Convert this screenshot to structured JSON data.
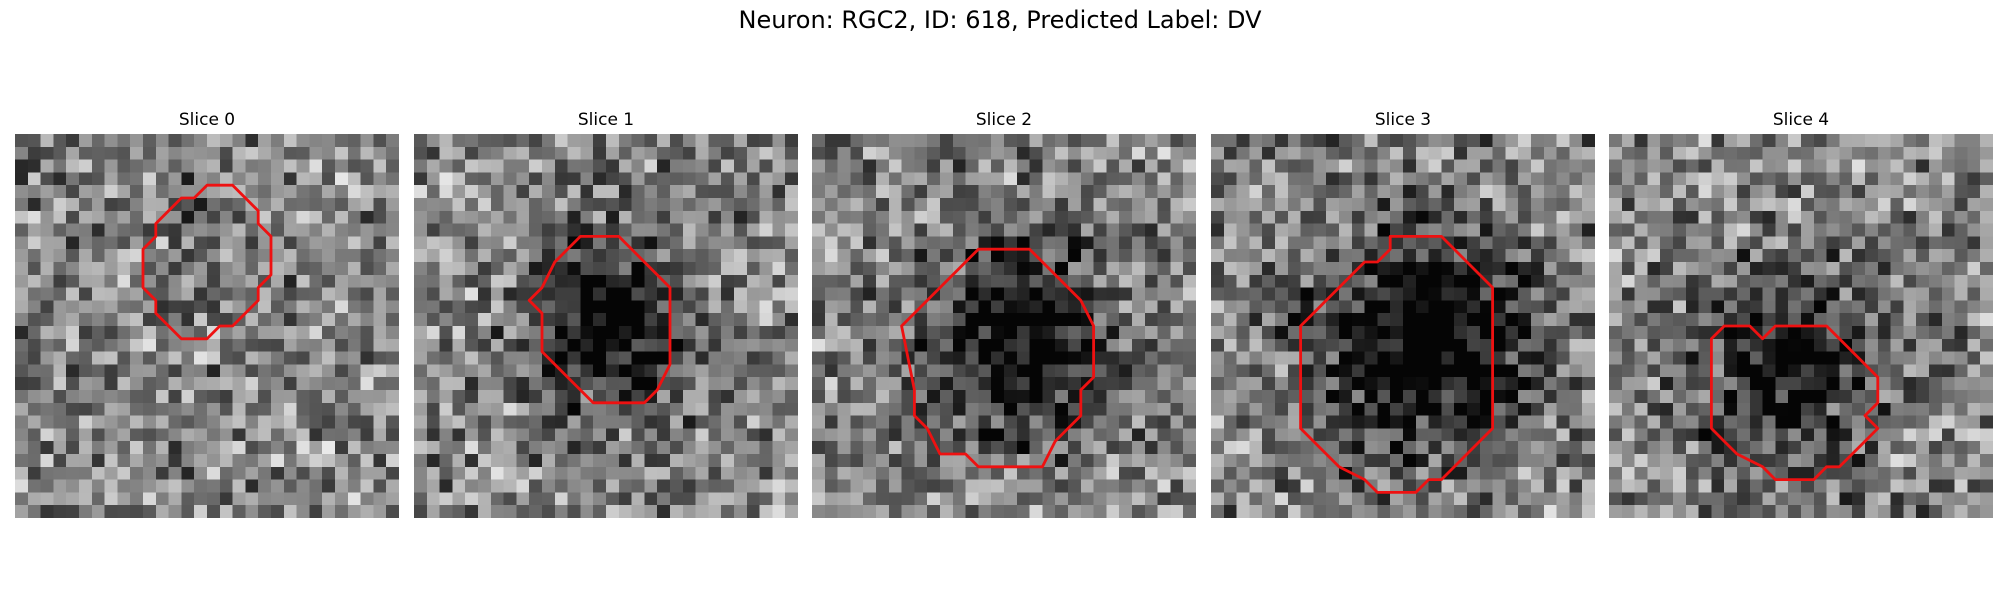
{
  "figure": {
    "title": "Neuron: RGC2, ID: 618, Predicted Label: DV"
  },
  "colors": {
    "contour": "#ee1111"
  },
  "slices": [
    {
      "title": "Slice 0",
      "seed": 11,
      "blob": {
        "cx": 16,
        "cy": 9,
        "r": 5,
        "darkness": 0.12
      },
      "contour": [
        [
          15,
          4
        ],
        [
          17,
          4
        ],
        [
          19,
          6
        ],
        [
          19,
          7
        ],
        [
          20,
          8
        ],
        [
          20,
          11
        ],
        [
          19,
          12
        ],
        [
          19,
          13
        ],
        [
          17,
          15
        ],
        [
          16,
          15
        ],
        [
          15,
          16
        ],
        [
          13,
          16
        ],
        [
          11,
          14
        ],
        [
          11,
          13
        ],
        [
          10,
          12
        ],
        [
          10,
          9
        ],
        [
          11,
          8
        ],
        [
          11,
          7
        ],
        [
          13,
          5
        ],
        [
          14,
          5
        ]
      ]
    },
    {
      "title": "Slice 1",
      "seed": 23,
      "blob": {
        "cx": 15,
        "cy": 15,
        "r": 5.5,
        "darkness": 0.62
      },
      "contour": [
        [
          13,
          8
        ],
        [
          16,
          8
        ],
        [
          20,
          12
        ],
        [
          20,
          18
        ],
        [
          19,
          20
        ],
        [
          18,
          21
        ],
        [
          14,
          21
        ],
        [
          10,
          17
        ],
        [
          10,
          14
        ],
        [
          9,
          13
        ],
        [
          10,
          12
        ],
        [
          11,
          10
        ],
        [
          13,
          8
        ]
      ]
    },
    {
      "title": "Slice 2",
      "seed": 37,
      "blob": {
        "cx": 16,
        "cy": 16,
        "r": 7,
        "darkness": 0.55
      },
      "contour": [
        [
          13,
          9
        ],
        [
          17,
          9
        ],
        [
          19,
          11
        ],
        [
          21,
          13
        ],
        [
          22,
          15
        ],
        [
          22,
          19
        ],
        [
          21,
          20
        ],
        [
          21,
          22
        ],
        [
          19,
          24
        ],
        [
          18,
          26
        ],
        [
          13,
          26
        ],
        [
          12,
          25
        ],
        [
          10,
          25
        ],
        [
          9,
          23
        ],
        [
          8,
          22
        ],
        [
          8,
          20
        ],
        [
          7,
          15
        ],
        [
          8,
          14
        ],
        [
          10,
          12
        ],
        [
          12,
          10
        ],
        [
          13,
          9
        ]
      ]
    },
    {
      "title": "Slice 3",
      "seed": 49,
      "blob": {
        "cx": 17,
        "cy": 16,
        "r": 8,
        "darkness": 0.68
      },
      "contour": [
        [
          14,
          8
        ],
        [
          18,
          8
        ],
        [
          20,
          10
        ],
        [
          22,
          12
        ],
        [
          22,
          23
        ],
        [
          20,
          25
        ],
        [
          18,
          27
        ],
        [
          17,
          27
        ],
        [
          16,
          28
        ],
        [
          13,
          28
        ],
        [
          12,
          27
        ],
        [
          10,
          26
        ],
        [
          9,
          25
        ],
        [
          8,
          24
        ],
        [
          7,
          23
        ],
        [
          7,
          15
        ],
        [
          8,
          14
        ],
        [
          9,
          13
        ],
        [
          10,
          12
        ],
        [
          11,
          11
        ],
        [
          12,
          10
        ],
        [
          13,
          10
        ],
        [
          14,
          9
        ]
      ]
    },
    {
      "title": "Slice 4",
      "seed": 61,
      "blob": {
        "cx": 14,
        "cy": 18,
        "r": 7,
        "darkness": 0.45
      },
      "contour": [
        [
          9,
          15
        ],
        [
          11,
          15
        ],
        [
          12,
          16
        ],
        [
          13,
          15
        ],
        [
          17,
          15
        ],
        [
          18,
          16
        ],
        [
          20,
          18
        ],
        [
          21,
          19
        ],
        [
          21,
          21
        ],
        [
          20,
          22
        ],
        [
          21,
          23
        ],
        [
          20,
          24
        ],
        [
          18,
          26
        ],
        [
          17,
          26
        ],
        [
          16,
          27
        ],
        [
          13,
          27
        ],
        [
          12,
          26
        ],
        [
          10,
          25
        ],
        [
          9,
          24
        ],
        [
          8,
          23
        ],
        [
          8,
          16
        ],
        [
          9,
          15
        ]
      ]
    }
  ]
}
